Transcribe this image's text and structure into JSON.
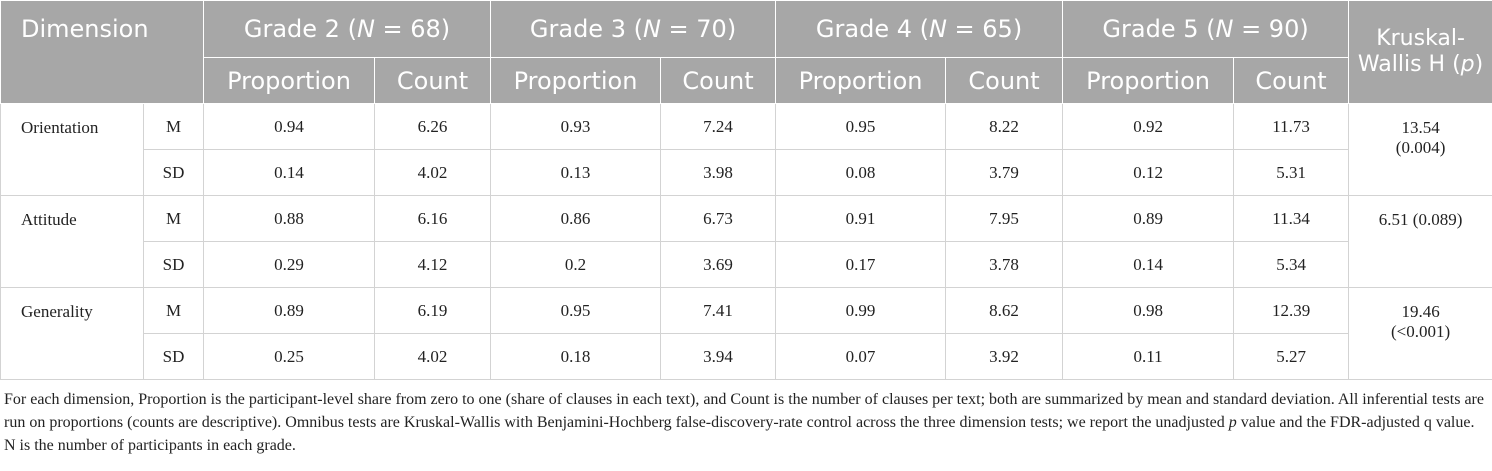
{
  "header": {
    "dimension": "Dimension",
    "grades": [
      [
        "Grade 2 (",
        "N",
        " = 68)"
      ],
      [
        "Grade 3 (",
        "N",
        " = 70)"
      ],
      [
        "Grade 4 (",
        "N",
        " = 65)"
      ],
      [
        "Grade 5 (",
        "N",
        " = 90)"
      ]
    ],
    "test": [
      "Kruskal-Wallis H (",
      "p",
      ")"
    ],
    "subheaders": [
      "Proportion",
      "Count",
      "Proportion",
      "Count",
      "Proportion",
      "Count",
      "Proportion",
      "Count"
    ]
  },
  "rows": [
    {
      "dimension": "Orientation",
      "test": "13.54 (0.004)",
      "stats": [
        {
          "stat": "M",
          "values": [
            "0.94",
            "6.26",
            "0.93",
            "7.24",
            "0.95",
            "8.22",
            "0.92",
            "11.73"
          ]
        },
        {
          "stat": "SD",
          "values": [
            "0.14",
            "4.02",
            "0.13",
            "3.98",
            "0.08",
            "3.79",
            "0.12",
            "5.31"
          ]
        }
      ]
    },
    {
      "dimension": "Attitude",
      "test": "6.51 (0.089)",
      "stats": [
        {
          "stat": "M",
          "values": [
            "0.88",
            "6.16",
            "0.86",
            "6.73",
            "0.91",
            "7.95",
            "0.89",
            "11.34"
          ]
        },
        {
          "stat": "SD",
          "values": [
            "0.29",
            "4.12",
            "0.2",
            "3.69",
            "0.17",
            "3.78",
            "0.14",
            "5.34"
          ]
        }
      ]
    },
    {
      "dimension": "Generality",
      "test": "19.46 (<0.001)",
      "stats": [
        {
          "stat": "M",
          "values": [
            "0.89",
            "6.19",
            "0.95",
            "7.41",
            "0.99",
            "8.62",
            "0.98",
            "12.39"
          ]
        },
        {
          "stat": "SD",
          "values": [
            "0.25",
            "4.02",
            "0.18",
            "3.94",
            "0.07",
            "3.92",
            "0.11",
            "5.27"
          ]
        }
      ]
    }
  ],
  "footnote": [
    "For each dimension, Proportion is the participant-level share from zero to one (share of clauses in each text), and Count is the number of clauses per text; both are summarized by mean and standard deviation. All inferential tests are run on proportions (counts are descriptive). Omnibus tests are Kruskal-Wallis with Benjamini-Hochberg false-discovery-rate control across the three dimension tests; we report the unadjusted ",
    "p",
    " value and the FDR-adjusted q value. N is the number of participants in each grade."
  ]
}
